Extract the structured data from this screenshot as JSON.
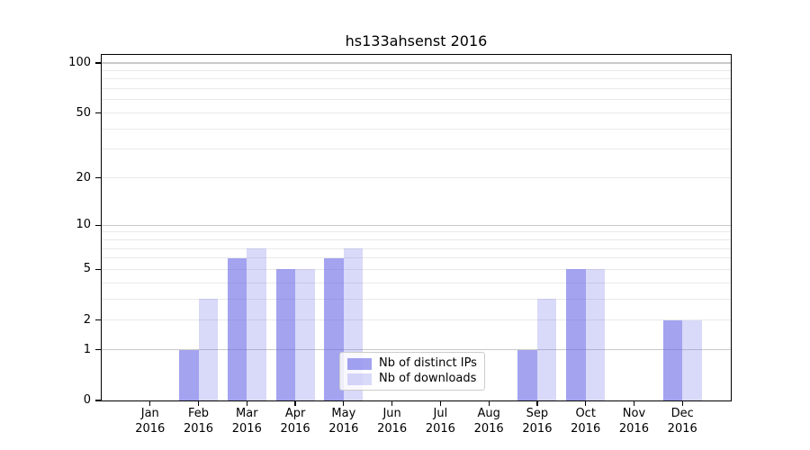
{
  "title": "hs133ahsenst 2016",
  "colors": {
    "background": "#ffffff",
    "axis": "#000000",
    "text": "#000000",
    "grid_major": "#c9c9c9",
    "grid_minor": "#e9e9e9",
    "bar_base": "#6666e6",
    "legend_border": "#cccccc"
  },
  "legend": {
    "items": [
      "Nb of distinct IPs",
      "Nb of downloads"
    ]
  },
  "chart_data": {
    "type": "bar",
    "title": "hs133ahsenst 2016",
    "categories": [
      "Jan 2016",
      "Feb 2016",
      "Mar 2016",
      "Apr 2016",
      "May 2016",
      "Jun 2016",
      "Jul 2016",
      "Aug 2016",
      "Sep 2016",
      "Oct 2016",
      "Nov 2016",
      "Dec 2016"
    ],
    "x_months": [
      "Jan",
      "Feb",
      "Mar",
      "Apr",
      "May",
      "Jun",
      "Jul",
      "Aug",
      "Sep",
      "Oct",
      "Nov",
      "Dec"
    ],
    "x_year": "2016",
    "series": [
      {
        "name": "Nb of distinct IPs",
        "color": "rgba(102,102,230,0.6)",
        "approx_hex": "#a8a8f2",
        "values": [
          0,
          1,
          6,
          5,
          6,
          0,
          0,
          0,
          1,
          5,
          0,
          2
        ]
      },
      {
        "name": "Nb of downloads",
        "color": "rgba(102,102,230,0.25)",
        "approx_hex": "#d8d8f7",
        "values": [
          0,
          3,
          7,
          5,
          7,
          0,
          0,
          0,
          3,
          5,
          0,
          2
        ]
      }
    ],
    "y_axis": {
      "scale": "log1p",
      "range": [
        0,
        100
      ],
      "ticks": [
        0,
        1,
        2,
        5,
        10,
        20,
        50,
        100
      ],
      "major_gridlines": [
        1,
        10,
        100
      ],
      "minor_gridlines": [
        2,
        3,
        4,
        5,
        6,
        7,
        8,
        9,
        20,
        30,
        40,
        50,
        60,
        70,
        80,
        90
      ]
    },
    "grid": true,
    "legend_position": "lower-center-inside"
  }
}
